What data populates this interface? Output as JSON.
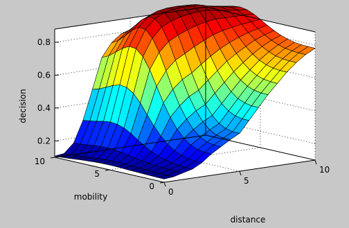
{
  "chart_data": {
    "type": "surface",
    "xlabel": "distance",
    "ylabel": "mobility",
    "zlabel": "decision",
    "xlim": [
      0,
      10
    ],
    "ylim": [
      0,
      10
    ],
    "zlim": [
      0.1,
      0.88
    ],
    "x_ticks": [
      "0",
      "5",
      "10"
    ],
    "y_ticks": [
      "0",
      "5",
      "10"
    ],
    "z_ticks": [
      "0.2",
      "0.4",
      "0.6",
      "0.8"
    ],
    "grid": true,
    "colormap": "jet",
    "colors": {
      "figure_background": "#c8c8c8",
      "axes_background": "#ffffff",
      "edge": "#000000"
    },
    "x": [
      0,
      0.625,
      1.25,
      1.875,
      2.5,
      3.125,
      3.75,
      4.375,
      5,
      5.625,
      6.25,
      6.875,
      7.5,
      8.125,
      8.75,
      9.375,
      10
    ],
    "y": [
      0,
      0.625,
      1.25,
      1.875,
      2.5,
      3.125,
      3.75,
      4.375,
      5,
      5.625,
      6.25,
      6.875,
      7.5,
      8.125,
      8.75,
      9.375,
      10
    ],
    "z_description": "z[i][j] = decision at distance x[i], mobility y[j]; estimated from the surface",
    "z": [
      [
        0.12,
        0.12,
        0.121,
        0.122,
        0.124,
        0.125,
        0.127,
        0.129,
        0.129,
        0.129,
        0.127,
        0.124,
        0.121,
        0.117,
        0.113,
        0.11,
        0.107
      ],
      [
        0.125,
        0.125,
        0.126,
        0.127,
        0.129,
        0.131,
        0.133,
        0.135,
        0.136,
        0.136,
        0.134,
        0.132,
        0.128,
        0.125,
        0.121,
        0.118,
        0.115
      ],
      [
        0.14,
        0.14,
        0.141,
        0.143,
        0.147,
        0.151,
        0.157,
        0.164,
        0.172,
        0.18,
        0.185,
        0.187,
        0.186,
        0.183,
        0.178,
        0.173,
        0.17
      ],
      [
        0.155,
        0.155,
        0.158,
        0.163,
        0.173,
        0.186,
        0.204,
        0.228,
        0.256,
        0.286,
        0.309,
        0.323,
        0.327,
        0.322,
        0.313,
        0.305,
        0.3
      ],
      [
        0.185,
        0.185,
        0.19,
        0.201,
        0.221,
        0.25,
        0.29,
        0.341,
        0.401,
        0.463,
        0.511,
        0.539,
        0.545,
        0.532,
        0.512,
        0.492,
        0.48
      ],
      [
        0.23,
        0.231,
        0.238,
        0.255,
        0.287,
        0.333,
        0.395,
        0.474,
        0.566,
        0.657,
        0.727,
        0.766,
        0.771,
        0.749,
        0.716,
        0.685,
        0.665
      ],
      [
        0.265,
        0.267,
        0.275,
        0.295,
        0.332,
        0.386,
        0.458,
        0.549,
        0.652,
        0.754,
        0.832,
        0.875,
        0.878,
        0.85,
        0.808,
        0.769,
        0.745
      ],
      [
        0.3,
        0.301,
        0.31,
        0.331,
        0.371,
        0.429,
        0.505,
        0.6,
        0.708,
        0.812,
        0.89,
        0.932,
        0.934,
        0.904,
        0.858,
        0.817,
        0.79
      ],
      [
        0.33,
        0.331,
        0.34,
        0.361,
        0.401,
        0.459,
        0.536,
        0.632,
        0.739,
        0.842,
        0.919,
        0.96,
        0.96,
        0.928,
        0.881,
        0.838,
        0.81
      ],
      [
        0.4,
        0.401,
        0.409,
        0.429,
        0.465,
        0.518,
        0.588,
        0.675,
        0.773,
        0.866,
        0.936,
        0.972,
        0.97,
        0.937,
        0.889,
        0.846,
        0.817
      ],
      [
        0.47,
        0.471,
        0.479,
        0.496,
        0.529,
        0.576,
        0.638,
        0.716,
        0.802,
        0.885,
        0.946,
        0.977,
        0.972,
        0.939,
        0.891,
        0.848,
        0.82
      ],
      [
        0.54,
        0.541,
        0.548,
        0.563,
        0.591,
        0.632,
        0.687,
        0.753,
        0.828,
        0.899,
        0.951,
        0.976,
        0.97,
        0.937,
        0.891,
        0.85,
        0.822
      ],
      [
        0.6,
        0.601,
        0.607,
        0.62,
        0.644,
        0.679,
        0.725,
        0.782,
        0.846,
        0.907,
        0.951,
        0.972,
        0.966,
        0.936,
        0.893,
        0.854,
        0.828
      ],
      [
        0.66,
        0.661,
        0.666,
        0.676,
        0.695,
        0.723,
        0.76,
        0.806,
        0.857,
        0.905,
        0.94,
        0.955,
        0.949,
        0.923,
        0.887,
        0.855,
        0.833
      ],
      [
        0.71,
        0.711,
        0.714,
        0.722,
        0.738,
        0.76,
        0.79,
        0.826,
        0.867,
        0.906,
        0.933,
        0.945,
        0.94,
        0.919,
        0.89,
        0.864,
        0.846
      ],
      [
        0.75,
        0.751,
        0.754,
        0.76,
        0.772,
        0.79,
        0.813,
        0.842,
        0.874,
        0.905,
        0.926,
        0.935,
        0.93,
        0.913,
        0.89,
        0.869,
        0.855
      ],
      [
        0.78,
        0.781,
        0.783,
        0.788,
        0.798,
        0.812,
        0.831,
        0.854,
        0.88,
        0.904,
        0.921,
        0.928,
        0.923,
        0.91,
        0.891,
        0.874,
        0.862
      ]
    ]
  }
}
